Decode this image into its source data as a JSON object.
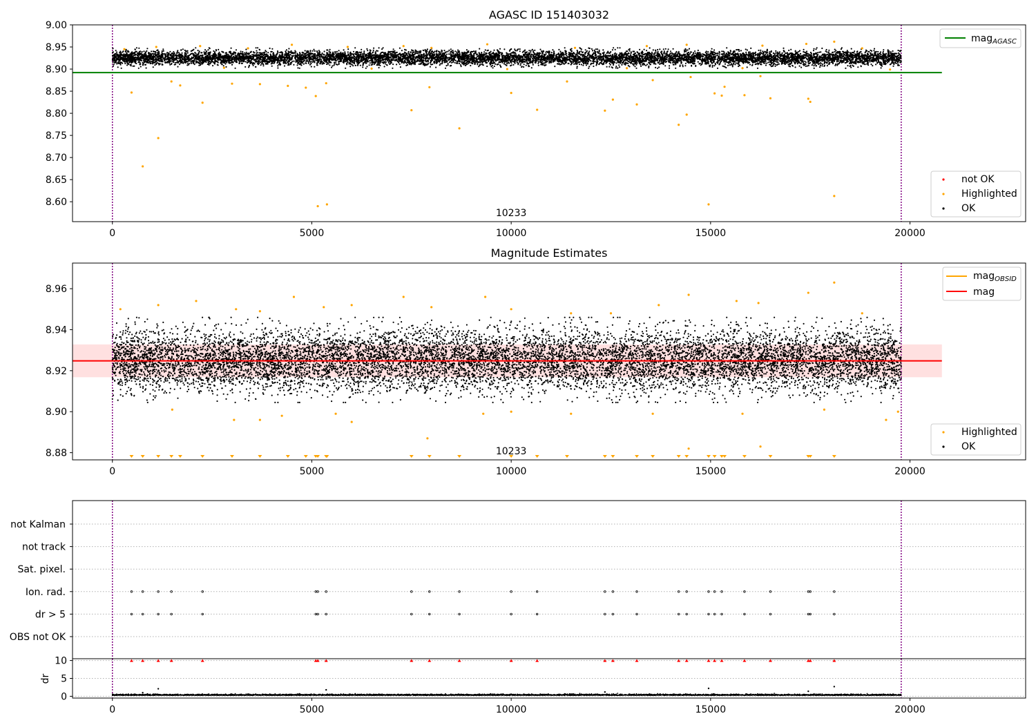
{
  "colors": {
    "ok": "#000000",
    "highlighted": "#ffa500",
    "not_ok": "#ff0000",
    "agasc_line": "#008000",
    "mag_line": "#ff0000",
    "mag_obsid": "#ffa500",
    "boundary": "#800080",
    "band": "#ffcccc",
    "grid": "#b0b0b0"
  },
  "chart_data": [
    {
      "id": "panel1",
      "type": "scatter",
      "title": "AGASC ID 151403032",
      "annotation": "10233",
      "annotation_x": 10000,
      "xlim": [
        -1000,
        22900
      ],
      "ylim": [
        8.555,
        9.0
      ],
      "x_ticks": [
        0,
        5000,
        10000,
        15000,
        20000
      ],
      "x_tick_labels": [
        "0",
        "5000",
        "10000",
        "15000",
        "20000"
      ],
      "y_ticks": [
        8.6,
        8.65,
        8.7,
        8.75,
        8.8,
        8.85,
        8.9,
        8.95,
        9.0
      ],
      "y_tick_labels": [
        "8.60",
        "8.65",
        "8.70",
        "8.75",
        "8.80",
        "8.85",
        "8.90",
        "8.95",
        "9.00"
      ],
      "vlines": [
        0,
        19780
      ],
      "hline": {
        "name": "mag_AGASC",
        "y": 8.892,
        "x_range": [
          -1000,
          20800
        ]
      },
      "ok_band": {
        "x_range": [
          0,
          19780
        ],
        "center": 8.925,
        "sd": 0.008
      },
      "legend_top": {
        "entry": "mag",
        "sub": "AGASC"
      },
      "legend_bottom": [
        "not OK",
        "Highlighted",
        "OK"
      ],
      "highlighted_points": [
        {
          "x": 480,
          "y": 8.847
        },
        {
          "x": 760,
          "y": 8.68
        },
        {
          "x": 1150,
          "y": 8.744
        },
        {
          "x": 1480,
          "y": 8.872
        },
        {
          "x": 1700,
          "y": 8.863
        },
        {
          "x": 2260,
          "y": 8.824
        },
        {
          "x": 3000,
          "y": 8.867
        },
        {
          "x": 3700,
          "y": 8.866
        },
        {
          "x": 4400,
          "y": 8.862
        },
        {
          "x": 4850,
          "y": 8.858
        },
        {
          "x": 5100,
          "y": 8.839
        },
        {
          "x": 5150,
          "y": 8.59
        },
        {
          "x": 5360,
          "y": 8.868
        },
        {
          "x": 5380,
          "y": 8.594
        },
        {
          "x": 7500,
          "y": 8.807
        },
        {
          "x": 7950,
          "y": 8.859
        },
        {
          "x": 8700,
          "y": 8.766
        },
        {
          "x": 10000,
          "y": 8.846
        },
        {
          "x": 10650,
          "y": 8.808
        },
        {
          "x": 11400,
          "y": 8.872
        },
        {
          "x": 12350,
          "y": 8.806
        },
        {
          "x": 12550,
          "y": 8.831
        },
        {
          "x": 13150,
          "y": 8.82
        },
        {
          "x": 13550,
          "y": 8.875
        },
        {
          "x": 14200,
          "y": 8.774
        },
        {
          "x": 14400,
          "y": 8.797
        },
        {
          "x": 14500,
          "y": 8.882
        },
        {
          "x": 14950,
          "y": 8.594
        },
        {
          "x": 15100,
          "y": 8.845
        },
        {
          "x": 15280,
          "y": 8.84
        },
        {
          "x": 15350,
          "y": 8.86
        },
        {
          "x": 15850,
          "y": 8.841
        },
        {
          "x": 16250,
          "y": 8.884
        },
        {
          "x": 16500,
          "y": 8.834
        },
        {
          "x": 17450,
          "y": 8.833
        },
        {
          "x": 17500,
          "y": 8.826
        },
        {
          "x": 18100,
          "y": 8.613
        }
      ],
      "upper_highlighted_points": [
        {
          "x": 300,
          "y": 8.945
        },
        {
          "x": 1100,
          "y": 8.95
        },
        {
          "x": 2200,
          "y": 8.952
        },
        {
          "x": 3400,
          "y": 8.947
        },
        {
          "x": 4500,
          "y": 8.955
        },
        {
          "x": 5900,
          "y": 8.95
        },
        {
          "x": 7300,
          "y": 8.952
        },
        {
          "x": 8000,
          "y": 8.948
        },
        {
          "x": 9400,
          "y": 8.956
        },
        {
          "x": 11600,
          "y": 8.948
        },
        {
          "x": 13400,
          "y": 8.952
        },
        {
          "x": 14400,
          "y": 8.955
        },
        {
          "x": 16300,
          "y": 8.953
        },
        {
          "x": 17400,
          "y": 8.957
        },
        {
          "x": 18100,
          "y": 8.962
        },
        {
          "x": 18800,
          "y": 8.947
        },
        {
          "x": 2800,
          "y": 8.903
        },
        {
          "x": 6500,
          "y": 8.901
        },
        {
          "x": 9900,
          "y": 8.9
        },
        {
          "x": 12900,
          "y": 8.902
        },
        {
          "x": 15800,
          "y": 8.902
        },
        {
          "x": 19500,
          "y": 8.899
        }
      ]
    },
    {
      "id": "panel2",
      "type": "scatter",
      "title": "Magnitude Estimates",
      "annotation": "10233",
      "annotation_x": 10000,
      "xlim": [
        -1000,
        22900
      ],
      "ylim": [
        8.8765,
        8.9725
      ],
      "x_ticks": [
        0,
        5000,
        10000,
        15000,
        20000
      ],
      "x_tick_labels": [
        "0",
        "5000",
        "10000",
        "15000",
        "20000"
      ],
      "y_ticks": [
        8.88,
        8.9,
        8.92,
        8.94,
        8.96
      ],
      "y_tick_labels": [
        "8.88",
        "8.90",
        "8.92",
        "8.94",
        "8.96"
      ],
      "vlines": [
        0,
        19780
      ],
      "hline": {
        "name": "mag",
        "y": 8.9248,
        "x_range": [
          -1000,
          20800
        ]
      },
      "band": {
        "y_range": [
          8.9168,
          8.9328
        ],
        "x_range": [
          -1000,
          20800
        ]
      },
      "ok_band": {
        "x_range": [
          0,
          19780
        ],
        "center": 8.925,
        "sd": 0.0075
      },
      "legend_top": [
        {
          "entry": "mag",
          "sub": "OBSID"
        },
        {
          "entry": "mag",
          "sub": ""
        }
      ],
      "legend_bottom": [
        "Highlighted",
        "OK"
      ],
      "highlighted_points": [
        {
          "x": 200,
          "y": 8.95
        },
        {
          "x": 1150,
          "y": 8.952
        },
        {
          "x": 2100,
          "y": 8.954
        },
        {
          "x": 3100,
          "y": 8.95
        },
        {
          "x": 3700,
          "y": 8.949
        },
        {
          "x": 4550,
          "y": 8.956
        },
        {
          "x": 5300,
          "y": 8.951
        },
        {
          "x": 6000,
          "y": 8.952
        },
        {
          "x": 7300,
          "y": 8.956
        },
        {
          "x": 8000,
          "y": 8.951
        },
        {
          "x": 9350,
          "y": 8.956
        },
        {
          "x": 10000,
          "y": 8.95
        },
        {
          "x": 11500,
          "y": 8.948
        },
        {
          "x": 12500,
          "y": 8.948
        },
        {
          "x": 13700,
          "y": 8.952
        },
        {
          "x": 14450,
          "y": 8.957
        },
        {
          "x": 15650,
          "y": 8.954
        },
        {
          "x": 16200,
          "y": 8.953
        },
        {
          "x": 17450,
          "y": 8.958
        },
        {
          "x": 18100,
          "y": 8.963
        },
        {
          "x": 18800,
          "y": 8.948
        },
        {
          "x": 1500,
          "y": 8.901
        },
        {
          "x": 3050,
          "y": 8.896
        },
        {
          "x": 3700,
          "y": 8.896
        },
        {
          "x": 4250,
          "y": 8.898
        },
        {
          "x": 5600,
          "y": 8.899
        },
        {
          "x": 6000,
          "y": 8.895
        },
        {
          "x": 7900,
          "y": 8.887
        },
        {
          "x": 9300,
          "y": 8.899
        },
        {
          "x": 10000,
          "y": 8.9
        },
        {
          "x": 11500,
          "y": 8.899
        },
        {
          "x": 13550,
          "y": 8.899
        },
        {
          "x": 14450,
          "y": 8.882
        },
        {
          "x": 15800,
          "y": 8.899
        },
        {
          "x": 16250,
          "y": 8.883
        },
        {
          "x": 17850,
          "y": 8.901
        },
        {
          "x": 19400,
          "y": 8.896
        },
        {
          "x": 19700,
          "y": 8.9
        }
      ],
      "clipped_triangles_x": [
        480,
        760,
        1150,
        1480,
        1700,
        2260,
        3000,
        3700,
        4400,
        4850,
        5100,
        5150,
        5360,
        5380,
        7500,
        7950,
        8700,
        10000,
        10650,
        11400,
        12350,
        12550,
        13150,
        13550,
        14200,
        14400,
        14950,
        15100,
        15280,
        15350,
        15850,
        16500,
        17450,
        17500,
        18100
      ]
    },
    {
      "id": "panel3",
      "type": "scatter",
      "xlim": [
        -1000,
        22900
      ],
      "categories": [
        "not Kalman",
        "not track",
        "Sat. pixel.",
        "Ion. rad.",
        "dr > 5",
        "OBS not OK"
      ],
      "vlines": [
        0,
        19780
      ],
      "flag_points": {
        "Ion. rad.": [
          480,
          760,
          1150,
          1480,
          2260,
          5100,
          5150,
          5360,
          7500,
          7950,
          8700,
          10000,
          10650,
          12350,
          12550,
          13150,
          14200,
          14400,
          14950,
          15100,
          15280,
          15850,
          16500,
          17450,
          17500,
          18100
        ],
        "dr > 5": [
          480,
          760,
          1150,
          1480,
          2260,
          5100,
          5150,
          5360,
          7500,
          7950,
          8700,
          10000,
          10650,
          12350,
          12550,
          13150,
          14200,
          14400,
          14950,
          15100,
          15280,
          15850,
          16500,
          17450,
          17500,
          18100
        ]
      }
    },
    {
      "id": "panel4",
      "type": "scatter",
      "xlim": [
        -1000,
        22900
      ],
      "ylim": [
        -0.5,
        10.5
      ],
      "ylabel": "dr",
      "x_ticks": [
        0,
        5000,
        10000,
        15000,
        20000
      ],
      "x_tick_labels": [
        "0",
        "5000",
        "10000",
        "15000",
        "20000"
      ],
      "y_ticks": [
        0,
        5,
        10
      ],
      "y_tick_labels": [
        "0",
        "5",
        "10"
      ],
      "vlines": [
        0,
        19780
      ],
      "not_ok_triangles_x": [
        480,
        760,
        1150,
        1480,
        2260,
        5100,
        5150,
        5360,
        7500,
        7950,
        8700,
        10000,
        10650,
        12350,
        12550,
        13150,
        14200,
        14400,
        14950,
        15100,
        15280,
        15850,
        16500,
        17450,
        17500,
        18100
      ],
      "dr_band": {
        "x_range": [
          0,
          19780
        ],
        "center": 0.25,
        "sd": 0.15
      },
      "dr_outliers": [
        {
          "x": 1150,
          "y": 2.1
        },
        {
          "x": 5360,
          "y": 1.8
        },
        {
          "x": 14950,
          "y": 2.2
        },
        {
          "x": 18100,
          "y": 2.7
        },
        {
          "x": 12350,
          "y": 1.2
        },
        {
          "x": 760,
          "y": 1.0
        },
        {
          "x": 17450,
          "y": 1.4
        }
      ]
    }
  ]
}
